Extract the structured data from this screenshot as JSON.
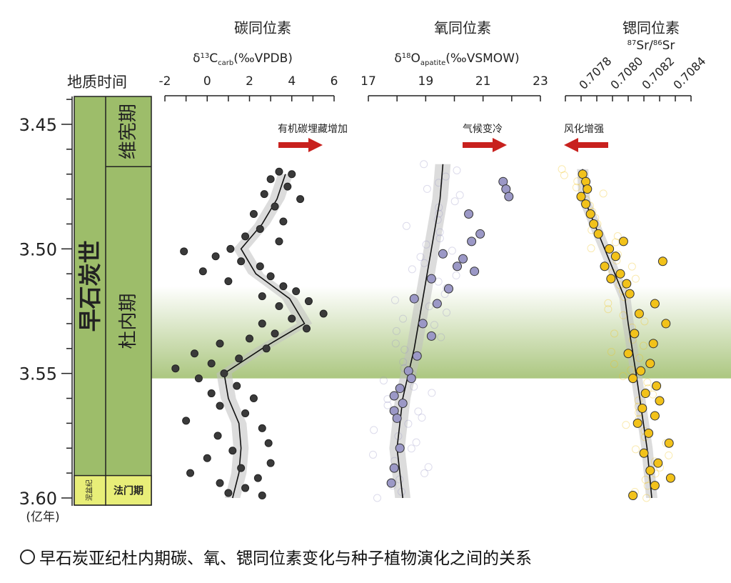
{
  "chart_data": {
    "type": "scatter",
    "y_axis": {
      "label": "地质时间",
      "unit": "(亿年)",
      "ylim": [
        3.6,
        3.44
      ],
      "ticks": [
        "3.45",
        "3.50",
        "3.55",
        "3.60"
      ],
      "tick_values": [
        3.45,
        3.5,
        3.55,
        3.6
      ]
    },
    "stratigraphy": {
      "epoch": "早石炭世",
      "period_below": "泥盆纪",
      "stages": [
        {
          "name": "维宪期",
          "from": 3.467,
          "to": 3.44
        },
        {
          "name": "杜内期",
          "from": 3.591,
          "to": 3.467
        },
        {
          "name": "法门期",
          "from": 3.6,
          "to": 3.591
        }
      ],
      "epoch_range": [
        3.591,
        3.44
      ]
    },
    "highlight_band": {
      "from": 3.552,
      "to": 3.515,
      "color": "#9dbd6a"
    },
    "panels": [
      {
        "title": "碳同位素",
        "axis_label": {
          "delta": "δ",
          "sup": "13",
          "main": "C",
          "sub": "carb",
          "unit": "(‰VPDB)"
        },
        "xlim": [
          -2,
          6
        ],
        "ticks": [
          "-2",
          "0",
          "2",
          "4",
          "6"
        ],
        "tick_values": [
          -2,
          0,
          2,
          4,
          6
        ],
        "trend_label": "有机碳埋藏增加",
        "arrow": "right",
        "point_color": "#3a3a3a",
        "trend": [
          [
            3.47,
            3.7
          ],
          [
            3.48,
            3.3
          ],
          [
            3.49,
            2.6
          ],
          [
            3.5,
            1.6
          ],
          [
            3.51,
            2.3
          ],
          [
            3.52,
            3.9
          ],
          [
            3.53,
            4.6
          ],
          [
            3.54,
            2.6
          ],
          [
            3.55,
            0.8
          ],
          [
            3.56,
            1.0
          ],
          [
            3.57,
            1.5
          ],
          [
            3.58,
            1.6
          ],
          [
            3.59,
            1.5
          ],
          [
            3.6,
            1.2
          ]
        ],
        "points": [
          [
            3.469,
            3.4
          ],
          [
            3.47,
            4.0
          ],
          [
            3.472,
            3.0
          ],
          [
            3.475,
            3.8
          ],
          [
            3.478,
            2.7
          ],
          [
            3.48,
            4.4
          ],
          [
            3.483,
            3.2
          ],
          [
            3.486,
            2.2
          ],
          [
            3.489,
            3.6
          ],
          [
            3.492,
            2.5
          ],
          [
            3.495,
            1.8
          ],
          [
            3.497,
            3.4
          ],
          [
            3.5,
            1.1
          ],
          [
            3.501,
            -1.1
          ],
          [
            3.503,
            0.4
          ],
          [
            3.505,
            1.6
          ],
          [
            3.507,
            2.5
          ],
          [
            3.509,
            -0.2
          ],
          [
            3.511,
            3.0
          ],
          [
            3.513,
            1.0
          ],
          [
            3.515,
            3.6
          ],
          [
            3.517,
            4.2
          ],
          [
            3.519,
            2.6
          ],
          [
            3.521,
            4.8
          ],
          [
            3.523,
            3.4
          ],
          [
            3.526,
            5.5
          ],
          [
            3.528,
            4.0
          ],
          [
            3.53,
            2.6
          ],
          [
            3.532,
            4.7
          ],
          [
            3.534,
            3.2
          ],
          [
            3.536,
            2.0
          ],
          [
            3.538,
            0.6
          ],
          [
            3.54,
            2.8
          ],
          [
            3.542,
            -0.6
          ],
          [
            3.544,
            1.5
          ],
          [
            3.546,
            0.2
          ],
          [
            3.548,
            -1.5
          ],
          [
            3.55,
            0.8
          ],
          [
            3.552,
            -0.4
          ],
          [
            3.555,
            1.4
          ],
          [
            3.558,
            0.2
          ],
          [
            3.56,
            2.2
          ],
          [
            3.563,
            0.6
          ],
          [
            3.566,
            1.8
          ],
          [
            3.569,
            -1.0
          ],
          [
            3.572,
            2.6
          ],
          [
            3.575,
            0.5
          ],
          [
            3.578,
            2.9
          ],
          [
            3.581,
            1.2
          ],
          [
            3.584,
            0.0
          ],
          [
            3.586,
            3.0
          ],
          [
            3.588,
            1.6
          ],
          [
            3.59,
            -0.8
          ],
          [
            3.592,
            2.4
          ],
          [
            3.594,
            0.6
          ],
          [
            3.596,
            1.8
          ],
          [
            3.598,
            1.0
          ],
          [
            3.599,
            2.6
          ]
        ]
      },
      {
        "title": "氧同位素",
        "axis_label": {
          "delta": "δ",
          "sup": "18",
          "main": "O",
          "sub": "apatite",
          "unit": "(‰VSMOW)"
        },
        "xlim": [
          17,
          23
        ],
        "ticks": [
          "17",
          "19",
          "21",
          "23"
        ],
        "tick_values": [
          17,
          19,
          21,
          23
        ],
        "trend_label": "气候变冷",
        "arrow": "right",
        "point_color": "#9b98c6",
        "trend": [
          [
            3.466,
            19.6
          ],
          [
            3.48,
            19.5
          ],
          [
            3.5,
            19.2
          ],
          [
            3.52,
            18.9
          ],
          [
            3.54,
            18.6
          ],
          [
            3.56,
            18.2
          ],
          [
            3.58,
            18.0
          ],
          [
            3.6,
            18.2
          ]
        ],
        "points": [
          [
            3.473,
            21.7
          ],
          [
            3.476,
            21.8
          ],
          [
            3.479,
            21.9
          ],
          [
            3.486,
            20.5
          ],
          [
            3.494,
            20.9
          ],
          [
            3.497,
            20.6
          ],
          [
            3.502,
            19.6
          ],
          [
            3.504,
            20.3
          ],
          [
            3.507,
            20.1
          ],
          [
            3.509,
            20.7
          ],
          [
            3.512,
            19.2
          ],
          [
            3.516,
            19.8
          ],
          [
            3.52,
            18.6
          ],
          [
            3.522,
            19.4
          ],
          [
            3.53,
            18.9
          ],
          [
            3.535,
            19.2
          ],
          [
            3.543,
            18.7
          ],
          [
            3.549,
            18.4
          ],
          [
            3.552,
            18.5
          ],
          [
            3.556,
            18.1
          ],
          [
            3.559,
            17.9
          ],
          [
            3.562,
            18.2
          ],
          [
            3.565,
            17.9
          ],
          [
            3.568,
            18.0
          ],
          [
            3.58,
            18.1
          ],
          [
            3.588,
            17.9
          ],
          [
            3.594,
            17.8
          ]
        ]
      },
      {
        "title": "锶同位素",
        "axis_label": {
          "sup1": "87",
          "main1": "Sr/",
          "sup2": "86",
          "main2": "Sr"
        },
        "xlim": [
          0.7077,
          0.7085
        ],
        "ticks": [
          "0.7078",
          "0.7080",
          "0.7082",
          "0.7084"
        ],
        "tick_values": [
          0.7078,
          0.708,
          0.7082,
          0.7084
        ],
        "trend_label": "风化增强",
        "arrow": "left",
        "point_color": "#f2c21a",
        "trend": [
          [
            3.468,
            0.70781
          ],
          [
            3.48,
            0.70782
          ],
          [
            3.5,
            0.70795
          ],
          [
            3.52,
            0.70808
          ],
          [
            3.53,
            0.7081
          ],
          [
            3.55,
            0.70815
          ],
          [
            3.58,
            0.70822
          ],
          [
            3.6,
            0.70825
          ]
        ],
        "points": [
          [
            3.47,
            0.70781
          ],
          [
            3.473,
            0.70783
          ],
          [
            3.476,
            0.70784
          ],
          [
            3.479,
            0.7078
          ],
          [
            3.482,
            0.70783
          ],
          [
            3.486,
            0.70786
          ],
          [
            3.49,
            0.70788
          ],
          [
            3.494,
            0.70791
          ],
          [
            3.497,
            0.70807
          ],
          [
            3.5,
            0.70798
          ],
          [
            3.503,
            0.70802
          ],
          [
            3.505,
            0.70832
          ],
          [
            3.507,
            0.70795
          ],
          [
            3.51,
            0.70805
          ],
          [
            3.512,
            0.70799
          ],
          [
            3.514,
            0.70809
          ],
          [
            3.518,
            0.70811
          ],
          [
            3.522,
            0.70827
          ],
          [
            3.526,
            0.70817
          ],
          [
            3.53,
            0.70834
          ],
          [
            3.534,
            0.70814
          ],
          [
            3.538,
            0.70826
          ],
          [
            3.542,
            0.7081
          ],
          [
            3.546,
            0.70824
          ],
          [
            3.549,
            0.70818
          ],
          [
            3.552,
            0.70813
          ],
          [
            3.555,
            0.70828
          ],
          [
            3.558,
            0.70821
          ],
          [
            3.561,
            0.7083
          ],
          [
            3.564,
            0.70819
          ],
          [
            3.567,
            0.70827
          ],
          [
            3.57,
            0.70816
          ],
          [
            3.574,
            0.70823
          ],
          [
            3.578,
            0.70836
          ],
          [
            3.582,
            0.7082
          ],
          [
            3.586,
            0.70829
          ],
          [
            3.589,
            0.70824
          ],
          [
            3.592,
            0.70837
          ],
          [
            3.595,
            0.70827
          ],
          [
            3.599,
            0.70813
          ]
        ]
      }
    ]
  },
  "caption": {
    "text": "早石炭亚纪杜内期碳、氧、锶同位素变化与种子植物演化之间的关系"
  }
}
